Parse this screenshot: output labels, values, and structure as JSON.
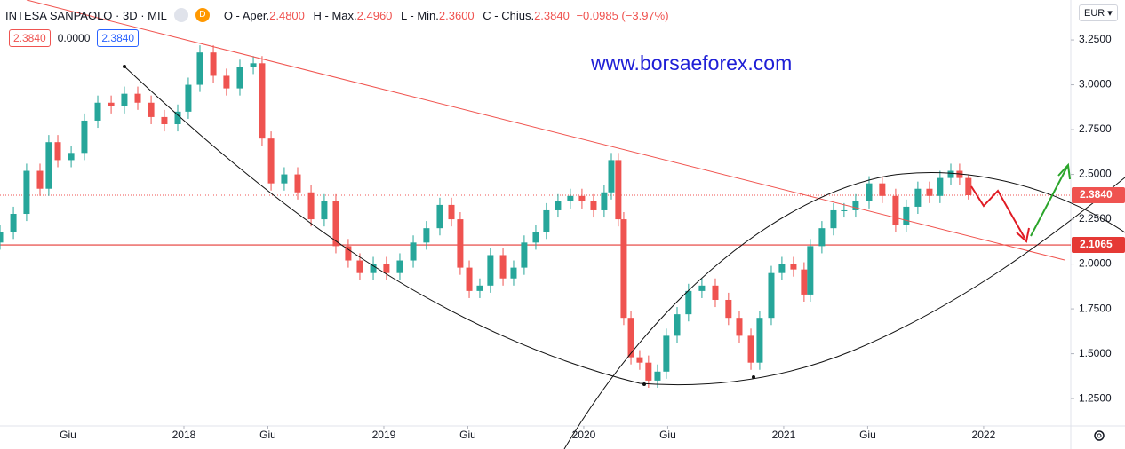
{
  "header": {
    "symbol": "INTESA SANPAOLO · 3D · MIL",
    "icon": "D",
    "ohlc": [
      {
        "label": "O - Aper.",
        "value": "2.4800"
      },
      {
        "label": "H - Max.",
        "value": "2.4960"
      },
      {
        "label": "L - Min.",
        "value": "2.3600"
      },
      {
        "label": "C - Chius.",
        "value": "2.3840"
      }
    ],
    "change": "−0.0985 (−3.97%)",
    "sell": "2.3840",
    "spread": "0.0000",
    "buy": "2.3840"
  },
  "currency": "EUR",
  "watermark": "www.borsaeforex.com",
  "chart_data": {
    "type": "candlestick",
    "x": [
      2017.08,
      2017.147,
      2017.213,
      2017.28,
      2017.324,
      2017.369,
      2017.436,
      2017.502,
      2017.569,
      2017.636,
      2017.702,
      2017.769,
      2017.836,
      2017.902,
      2017.969,
      2018.022,
      2018.08,
      2018.147,
      2018.213,
      2018.28,
      2018.347,
      2018.391,
      2018.436,
      2018.502,
      2018.569,
      2018.636,
      2018.702,
      2018.76,
      2018.822,
      2018.88,
      2018.947,
      2019.013,
      2019.08,
      2019.147,
      2019.213,
      2019.28,
      2019.338,
      2019.382,
      2019.427,
      2019.48,
      2019.533,
      2019.596,
      2019.649,
      2019.702,
      2019.76,
      2019.813,
      2019.871,
      2019.933,
      2019.991,
      2020.049,
      2020.102,
      2020.138,
      2020.173,
      2020.2,
      2020.236,
      2020.28,
      2020.324,
      2020.369,
      2020.413,
      2020.467,
      2020.524,
      2020.591,
      2020.658,
      2020.724,
      2020.778,
      2020.836,
      2020.88,
      2020.938,
      2020.991,
      2021.049,
      2021.102,
      2021.133,
      2021.191,
      2021.249,
      2021.302,
      2021.36,
      2021.427,
      2021.493,
      2021.56,
      2021.613,
      2021.671,
      2021.729,
      2021.782,
      2021.836,
      2021.88,
      2021.924
    ],
    "open": [
      2.12,
      2.18,
      2.28,
      2.52,
      2.42,
      2.68,
      2.58,
      2.62,
      2.8,
      2.9,
      2.88,
      2.95,
      2.9,
      2.82,
      2.78,
      2.85,
      3.0,
      3.18,
      3.05,
      2.98,
      3.1,
      3.12,
      2.7,
      2.45,
      2.5,
      2.4,
      2.25,
      2.35,
      2.1,
      2.02,
      1.95,
      2.0,
      1.95,
      2.02,
      2.12,
      2.2,
      2.33,
      2.25,
      1.98,
      1.85,
      1.88,
      2.05,
      1.92,
      1.98,
      2.12,
      2.18,
      2.3,
      2.35,
      2.38,
      2.35,
      2.3,
      2.4,
      2.58,
      2.25,
      1.7,
      1.48,
      1.45,
      1.35,
      1.4,
      1.6,
      1.72,
      1.85,
      1.88,
      1.8,
      1.7,
      1.6,
      1.45,
      1.7,
      1.95,
      2.0,
      1.97,
      1.83,
      2.1,
      2.2,
      2.3,
      2.3,
      2.35,
      2.45,
      2.38,
      2.22,
      2.32,
      2.42,
      2.38,
      2.48,
      2.52,
      2.48
    ],
    "high": [
      2.22,
      2.32,
      2.56,
      2.56,
      2.72,
      2.72,
      2.66,
      2.84,
      2.94,
      2.94,
      2.99,
      2.99,
      2.94,
      2.86,
      2.89,
      3.04,
      3.22,
      3.22,
      3.09,
      3.14,
      3.16,
      3.16,
      2.74,
      2.54,
      2.54,
      2.44,
      2.39,
      2.39,
      2.14,
      2.06,
      2.04,
      2.04,
      2.06,
      2.16,
      2.24,
      2.37,
      2.37,
      2.29,
      2.02,
      1.92,
      2.09,
      2.09,
      2.02,
      2.16,
      2.22,
      2.34,
      2.39,
      2.42,
      2.42,
      2.39,
      2.44,
      2.62,
      2.62,
      2.29,
      1.74,
      1.52,
      1.49,
      1.44,
      1.64,
      1.76,
      1.89,
      1.92,
      1.92,
      1.84,
      1.74,
      1.64,
      1.74,
      1.99,
      2.04,
      2.04,
      2.01,
      2.14,
      2.24,
      2.34,
      2.34,
      2.39,
      2.49,
      2.49,
      2.42,
      2.36,
      2.46,
      2.46,
      2.52,
      2.56,
      2.56,
      2.496
    ],
    "low": [
      2.08,
      2.14,
      2.24,
      2.38,
      2.38,
      2.54,
      2.54,
      2.58,
      2.76,
      2.84,
      2.84,
      2.86,
      2.78,
      2.74,
      2.74,
      2.81,
      2.96,
      3.01,
      2.94,
      2.94,
      3.06,
      2.66,
      2.41,
      2.41,
      2.36,
      2.21,
      2.21,
      2.06,
      1.98,
      1.91,
      1.91,
      1.91,
      1.91,
      1.98,
      2.08,
      2.16,
      2.21,
      1.94,
      1.81,
      1.81,
      1.84,
      1.88,
      1.88,
      1.94,
      2.08,
      2.14,
      2.26,
      2.31,
      2.31,
      2.26,
      2.26,
      2.36,
      2.21,
      1.66,
      1.44,
      1.41,
      1.31,
      1.31,
      1.36,
      1.56,
      1.68,
      1.81,
      1.76,
      1.66,
      1.56,
      1.41,
      1.41,
      1.66,
      1.91,
      1.93,
      1.79,
      1.79,
      2.06,
      2.16,
      2.26,
      2.26,
      2.31,
      2.34,
      2.18,
      2.18,
      2.28,
      2.34,
      2.34,
      2.44,
      2.44,
      2.36
    ],
    "close": [
      2.18,
      2.28,
      2.52,
      2.42,
      2.68,
      2.58,
      2.62,
      2.8,
      2.9,
      2.88,
      2.95,
      2.9,
      2.82,
      2.78,
      2.85,
      3.0,
      3.18,
      3.05,
      2.98,
      3.1,
      3.12,
      2.7,
      2.45,
      2.5,
      2.4,
      2.25,
      2.35,
      2.1,
      2.02,
      1.95,
      2.0,
      1.95,
      2.02,
      2.12,
      2.2,
      2.33,
      2.25,
      1.98,
      1.85,
      1.88,
      2.05,
      1.92,
      1.98,
      2.12,
      2.18,
      2.3,
      2.35,
      2.38,
      2.35,
      2.3,
      2.4,
      2.58,
      2.25,
      1.7,
      1.48,
      1.45,
      1.35,
      1.4,
      1.6,
      1.72,
      1.85,
      1.88,
      1.8,
      1.7,
      1.6,
      1.45,
      1.7,
      1.95,
      2.0,
      1.97,
      1.83,
      2.1,
      2.2,
      2.3,
      2.3,
      2.35,
      2.45,
      2.38,
      2.22,
      2.32,
      2.42,
      2.38,
      2.48,
      2.52,
      2.48,
      2.384
    ],
    "up_color": "#26a69a",
    "down_color": "#ef5350",
    "xlim": [
      2017.08,
      2022.436
    ],
    "ylim": [
      1.097,
      3.473
    ],
    "grid": false,
    "xticks": [
      {
        "value": 2017.42,
        "label": "Giu"
      },
      2018,
      {
        "value": 2018.42,
        "label": "Giu"
      },
      2019,
      {
        "value": 2019.42,
        "label": "Giu"
      },
      2020,
      {
        "value": 2020.42,
        "label": "Giu"
      },
      2021,
      {
        "value": 2021.42,
        "label": "Giu"
      },
      2022
    ],
    "yticks": [
      {
        "value": 1.25,
        "label": "1.2500"
      },
      {
        "value": 1.5,
        "label": "1.5000"
      },
      {
        "value": 1.75,
        "label": "1.7500"
      },
      {
        "value": 2,
        "label": "2.0000"
      },
      {
        "value": 2.25,
        "label": "2.2500"
      },
      {
        "value": 2.5,
        "label": "2.5000"
      },
      {
        "value": 2.75,
        "label": "2.7500"
      },
      {
        "value": 3,
        "label": "3.0000"
      },
      {
        "value": 3.25,
        "label": "3.2500"
      }
    ],
    "price_lines": [
      {
        "value": 2.384,
        "label": "2.3840",
        "style": "dotted",
        "color": "#ef5350"
      },
      {
        "value": 2.1065,
        "label": "2.1065",
        "style": "solid",
        "color": "#e53935"
      }
    ]
  }
}
